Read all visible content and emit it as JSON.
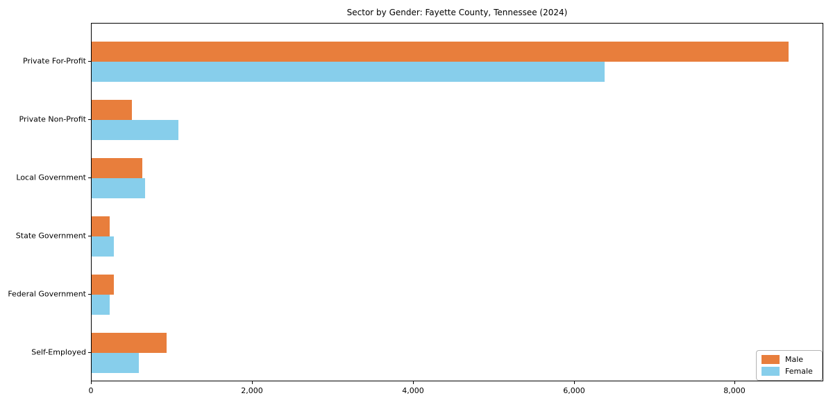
{
  "chart_data": {
    "type": "bar",
    "orientation": "horizontal",
    "title": "Sector by Gender: Fayette County, Tennessee (2024)",
    "xlabel": "",
    "ylabel": "",
    "categories": [
      "Private For-Profit",
      "Private Non-Profit",
      "Local Government",
      "State Government",
      "Federal Government",
      "Self-Employed"
    ],
    "series": [
      {
        "name": "Male",
        "color": "#e87e3c",
        "values": [
          8660,
          500,
          630,
          225,
          275,
          930
        ]
      },
      {
        "name": "Female",
        "color": "#87ceeb",
        "values": [
          6370,
          1080,
          665,
          280,
          220,
          590
        ]
      }
    ],
    "xlim": [
      0,
      9100
    ],
    "xticks": [
      0,
      2000,
      4000,
      6000,
      8000
    ],
    "xtick_labels": [
      "0",
      "2,000",
      "4,000",
      "6,000",
      "8,000"
    ],
    "grid": false,
    "legend_position": "lower right"
  }
}
